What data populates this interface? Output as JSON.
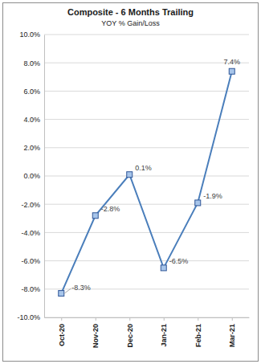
{
  "chart_data": {
    "type": "line",
    "title": "Composite - 6 Months Trailing",
    "subtitle": "YOY % Gain/Loss",
    "categories": [
      "Oct-20",
      "Nov-20",
      "Dec-20",
      "Jan-21",
      "Feb-21",
      "Mar-21"
    ],
    "values": [
      -8.3,
      -2.8,
      0.1,
      -6.5,
      -1.9,
      7.4
    ],
    "value_labels": [
      "-8.3%",
      "-2.8%",
      "0.1%",
      "-6.5%",
      "-1.9%",
      "7.4%"
    ],
    "color": "#4a7ebb",
    "marker": "square",
    "ylim": [
      -10,
      10
    ],
    "yticks": [
      {
        "value": -10,
        "label": "-10.0%"
      },
      {
        "value": -8,
        "label": "-8.0%"
      },
      {
        "value": -6,
        "label": "-6.0%"
      },
      {
        "value": -4,
        "label": "-4.0%"
      },
      {
        "value": -2,
        "label": "-2.0%"
      },
      {
        "value": 0,
        "label": "0.0%"
      },
      {
        "value": 2,
        "label": "2.0%"
      },
      {
        "value": 4,
        "label": "4.0%"
      },
      {
        "value": 6,
        "label": "6.0%"
      },
      {
        "value": 8,
        "label": "8.0%"
      },
      {
        "value": 10,
        "label": "10.0%"
      }
    ],
    "grid": true,
    "data_labels": true
  }
}
